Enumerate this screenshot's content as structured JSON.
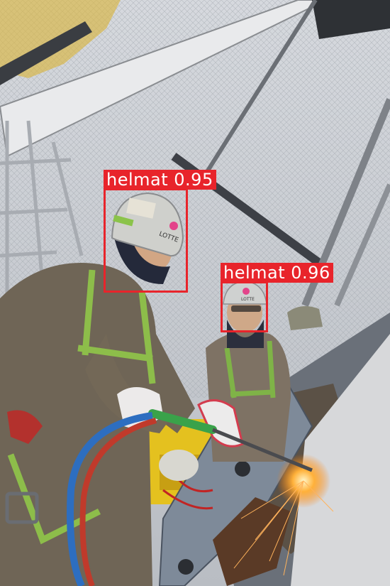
{
  "detections": [
    {
      "class": "helmat",
      "confidence": "0.95",
      "label": "helmat 0.95"
    },
    {
      "class": "helmat",
      "confidence": "0.96",
      "label": "helmat 0.96"
    }
  ],
  "colors": {
    "box": "#e8242b",
    "label_text": "#ffffff"
  },
  "helmet_text": {
    "worker1": "LOTTE",
    "worker2": "LOTTE"
  }
}
